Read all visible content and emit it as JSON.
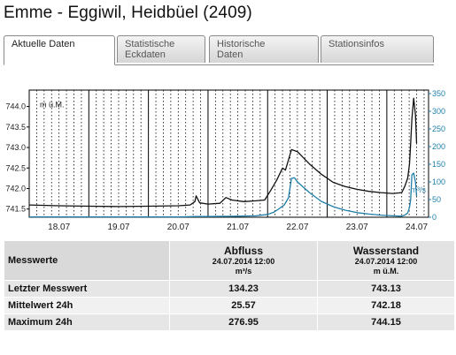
{
  "title": "Emme - Eggiwil, Heidbüel (2409)",
  "tabs": [
    {
      "line1": "Aktuelle Daten",
      "line2": ""
    },
    {
      "line1": "Statistische",
      "line2": "Eckdaten"
    },
    {
      "line1": "Historische",
      "line2": "Daten"
    },
    {
      "line1": "Stationsinfos",
      "line2": ""
    }
  ],
  "colors": {
    "level": "#111111",
    "discharge": "#1f7fa8",
    "grid": "#000000"
  },
  "chart_data": {
    "type": "line",
    "left_axis_label": "m ü.M.",
    "right_axis_label": "m³/s",
    "left_ticks": [
      "744.0",
      "743.5",
      "743.0",
      "742.5",
      "742.0",
      "741.5"
    ],
    "left_range": [
      741.3,
      744.4
    ],
    "right_ticks": [
      "350",
      "300",
      "250",
      "200",
      "150",
      "100",
      "50",
      "0"
    ],
    "right_range": [
      0,
      360
    ],
    "x_labels": [
      "18.07",
      "19.07",
      "20.07",
      "21.07",
      "22.07",
      "23.07",
      "24.07"
    ],
    "x_range": [
      17.5,
      24.2
    ],
    "series": [
      {
        "axis": "left",
        "x": [
          17.5,
          18.0,
          18.5,
          19.0,
          19.5,
          20.0,
          20.2,
          20.28,
          20.3,
          20.36,
          20.5,
          20.7,
          20.8,
          20.9,
          21.1,
          21.3,
          21.45,
          21.55,
          21.65,
          21.75,
          21.8,
          21.85,
          21.9,
          22.0,
          22.2,
          22.4,
          22.6,
          22.8,
          23.0,
          23.2,
          23.4,
          23.6,
          23.75,
          23.8,
          23.85,
          23.88,
          23.9,
          23.92,
          23.95,
          23.98,
          24.0
        ],
        "y": [
          741.6,
          741.58,
          741.57,
          741.56,
          741.57,
          741.58,
          741.6,
          741.68,
          741.82,
          741.65,
          741.62,
          741.64,
          741.78,
          741.72,
          741.68,
          741.7,
          741.72,
          741.95,
          742.2,
          742.5,
          742.45,
          742.7,
          742.95,
          742.9,
          742.6,
          742.35,
          742.15,
          742.05,
          741.98,
          741.93,
          741.9,
          741.88,
          741.9,
          742.05,
          742.25,
          742.6,
          743.1,
          743.7,
          744.2,
          743.8,
          743.1
        ]
      },
      {
        "axis": "right",
        "x": [
          17.5,
          18.0,
          19.0,
          20.0,
          20.3,
          20.5,
          21.0,
          21.3,
          21.5,
          21.6,
          21.7,
          21.78,
          21.85,
          21.9,
          21.95,
          22.0,
          22.2,
          22.4,
          22.6,
          22.8,
          23.0,
          23.2,
          23.4,
          23.6,
          23.75,
          23.8,
          23.85,
          23.88,
          23.9,
          23.92,
          23.95,
          23.98,
          24.0
        ],
        "y": [
          1,
          1,
          1,
          1,
          2,
          2,
          3,
          4,
          8,
          14,
          25,
          35,
          55,
          110,
          112,
          100,
          70,
          45,
          30,
          20,
          13,
          9,
          6,
          4,
          3,
          6,
          12,
          28,
          50,
          120,
          125,
          100,
          60
        ]
      }
    ]
  },
  "table": {
    "head_label": "Messwerte",
    "columns": [
      {
        "name": "Abfluss",
        "date": "24.07.2014 12:00",
        "unit": "m³/s"
      },
      {
        "name": "Wasserstand",
        "date": "24.07.2014 12:00",
        "unit": "m ü.M."
      }
    ],
    "rows": [
      {
        "label": "Letzter Messwert",
        "a": "134.23",
        "b": "743.13"
      },
      {
        "label": "Mittelwert 24h",
        "a": "25.57",
        "b": "742.18"
      },
      {
        "label": "Maximum 24h",
        "a": "276.95",
        "b": "744.15"
      }
    ]
  }
}
